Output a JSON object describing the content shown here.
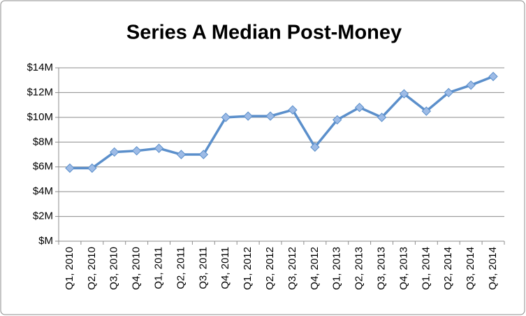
{
  "chart_data": {
    "type": "line",
    "title": "Series A Median Post-Money",
    "categories": [
      "Q1, 2010",
      "Q2, 2010",
      "Q3, 2010",
      "Q4, 2010",
      "Q1, 2011",
      "Q2, 2011",
      "Q3, 2011",
      "Q4, 2011",
      "Q1, 2012",
      "Q2, 2012",
      "Q3, 2012",
      "Q4, 2012",
      "Q1, 2013",
      "Q2, 2013",
      "Q3, 2013",
      "Q4, 2013",
      "Q1, 2014",
      "Q2, 2014",
      "Q3, 2014",
      "Q4, 2014"
    ],
    "values": [
      5.9,
      5.9,
      7.2,
      7.3,
      7.5,
      7.0,
      7.0,
      10.0,
      10.1,
      10.1,
      10.6,
      7.6,
      9.8,
      10.8,
      10.0,
      11.9,
      10.5,
      12.0,
      12.6,
      13.3
    ],
    "color": "#5b8fcb",
    "ylim": [
      0,
      14
    ],
    "yticks": [
      {
        "value": 0,
        "label": "$M"
      },
      {
        "value": 2,
        "label": "$2M"
      },
      {
        "value": 4,
        "label": "$4M"
      },
      {
        "value": 6,
        "label": "$6M"
      },
      {
        "value": 8,
        "label": "$8M"
      },
      {
        "value": 10,
        "label": "$10M"
      },
      {
        "value": 12,
        "label": "$12M"
      },
      {
        "value": 14,
        "label": "$14M"
      }
    ],
    "grid": true
  }
}
